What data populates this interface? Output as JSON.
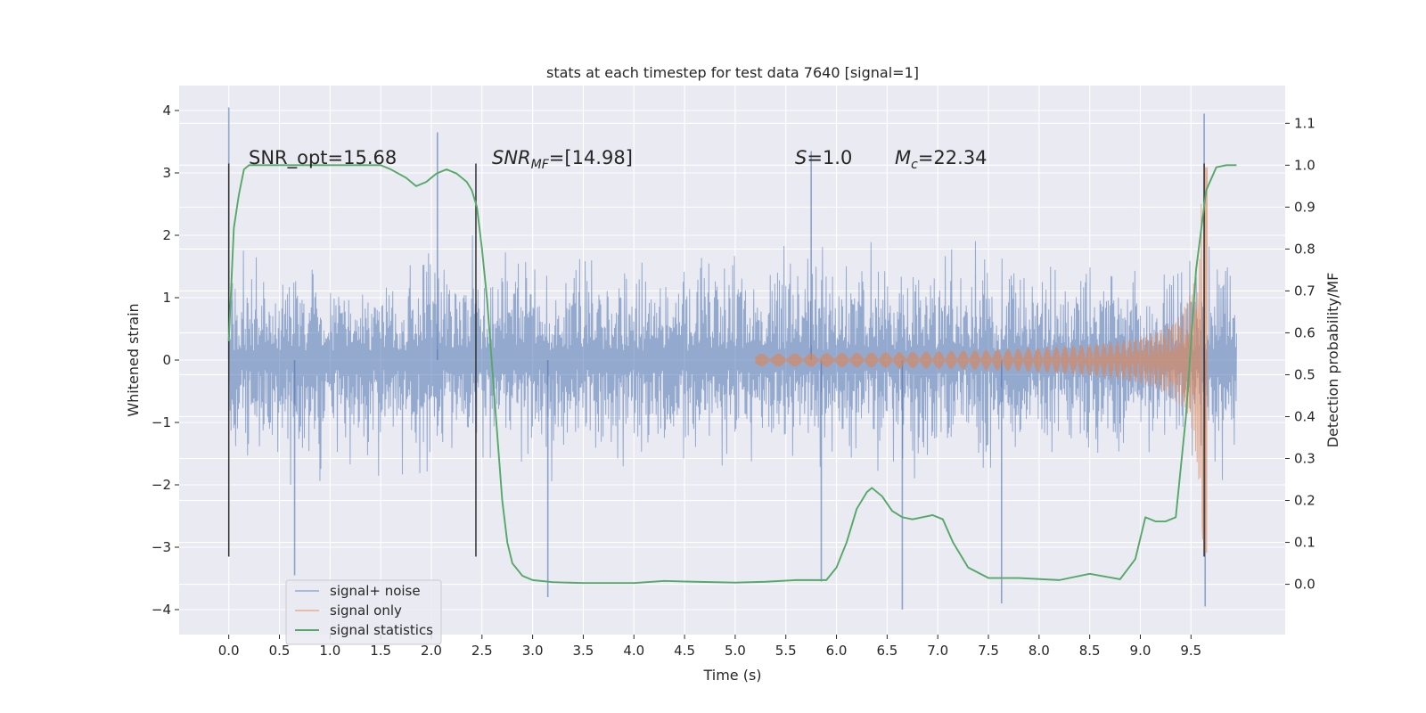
{
  "chart_data": {
    "type": "line",
    "title": "stats at each timestep for test data 7640 [signal=1]",
    "xlabel": "Time (s)",
    "ylabel": "Whitened strain",
    "y2label": "Detection probability/MF",
    "xlim": [
      -0.49,
      10.43
    ],
    "ylim": [
      -4.4,
      4.4
    ],
    "y2lim": [
      -0.12,
      1.19
    ],
    "xticks": [
      "0.0",
      "0.5",
      "1.0",
      "1.5",
      "2.0",
      "2.5",
      "3.0",
      "3.5",
      "4.0",
      "4.5",
      "5.0",
      "5.5",
      "6.0",
      "6.5",
      "7.0",
      "7.5",
      "8.0",
      "8.5",
      "9.0",
      "9.5"
    ],
    "yticks": [
      "4",
      "3",
      "2",
      "1",
      "0",
      "−1",
      "−2",
      "−3",
      "−4"
    ],
    "y2ticks": [
      "1.1",
      "1.0",
      "0.9",
      "0.8",
      "0.7",
      "0.6",
      "0.5",
      "0.4",
      "0.3",
      "0.2",
      "0.1",
      "0.0"
    ],
    "grid": true,
    "legend_position": "lower-left",
    "annotations": {
      "snr_opt": "SNR_opt=15.68",
      "snr_mf_main": "SNR",
      "snr_mf_sub": "MF",
      "snr_mf_rest": "=[14.98]",
      "s_main": "S",
      "s_rest": "=1.0",
      "mc_main": "M",
      "mc_sub": "c",
      "mc_rest": "=22.34"
    },
    "markers": [
      0.0,
      2.44,
      9.63
    ],
    "series": [
      {
        "name": "signal+ noise",
        "color": "#4c72b0",
        "kind": "noise",
        "x_range": [
          0.0,
          9.95
        ],
        "typical_amplitude": 1.3,
        "peaks": [
          [
            0.0,
            4.05
          ],
          [
            2.06,
            3.65
          ],
          [
            5.75,
            3.35
          ],
          [
            9.63,
            3.95
          ],
          [
            0.65,
            -3.45
          ],
          [
            3.15,
            -3.8
          ],
          [
            5.85,
            -3.55
          ],
          [
            6.65,
            -4.0
          ],
          [
            7.63,
            -3.9
          ],
          [
            9.64,
            -3.95
          ]
        ]
      },
      {
        "name": "signal only",
        "color": "#dd8452",
        "kind": "chirp",
        "x_range": [
          5.2,
          9.66
        ],
        "peak_amplitude": 3.4,
        "merger_time": 9.64
      },
      {
        "name": "signal statistics",
        "color": "#55a868",
        "kind": "line",
        "axis": "right",
        "x": [
          0.0,
          0.05,
          0.1,
          0.15,
          0.2,
          0.3,
          0.5,
          1.0,
          1.5,
          1.6,
          1.75,
          1.85,
          1.95,
          2.05,
          2.15,
          2.25,
          2.3,
          2.35,
          2.4,
          2.45,
          2.5,
          2.55,
          2.6,
          2.65,
          2.7,
          2.75,
          2.8,
          2.9,
          3.0,
          3.2,
          3.5,
          4.0,
          4.3,
          4.6,
          5.0,
          5.3,
          5.6,
          5.9,
          6.0,
          6.1,
          6.2,
          6.3,
          6.35,
          6.45,
          6.55,
          6.65,
          6.75,
          6.85,
          6.95,
          7.05,
          7.15,
          7.3,
          7.5,
          7.8,
          8.2,
          8.5,
          8.8,
          8.95,
          9.05,
          9.15,
          9.25,
          9.35,
          9.45,
          9.55,
          9.65,
          9.75,
          9.85,
          9.95
        ],
        "y": [
          0.58,
          0.85,
          0.93,
          0.99,
          1.0,
          1.0,
          1.0,
          1.0,
          1.0,
          0.99,
          0.97,
          0.95,
          0.96,
          0.98,
          0.99,
          0.98,
          0.97,
          0.96,
          0.94,
          0.9,
          0.8,
          0.68,
          0.52,
          0.36,
          0.2,
          0.1,
          0.05,
          0.02,
          0.01,
          0.005,
          0.003,
          0.003,
          0.008,
          0.006,
          0.004,
          0.006,
          0.01,
          0.01,
          0.04,
          0.1,
          0.18,
          0.22,
          0.23,
          0.21,
          0.175,
          0.16,
          0.155,
          0.16,
          0.165,
          0.155,
          0.1,
          0.04,
          0.015,
          0.015,
          0.01,
          0.025,
          0.012,
          0.06,
          0.16,
          0.15,
          0.15,
          0.16,
          0.4,
          0.75,
          0.94,
          0.995,
          1.0,
          1.0
        ]
      }
    ]
  }
}
